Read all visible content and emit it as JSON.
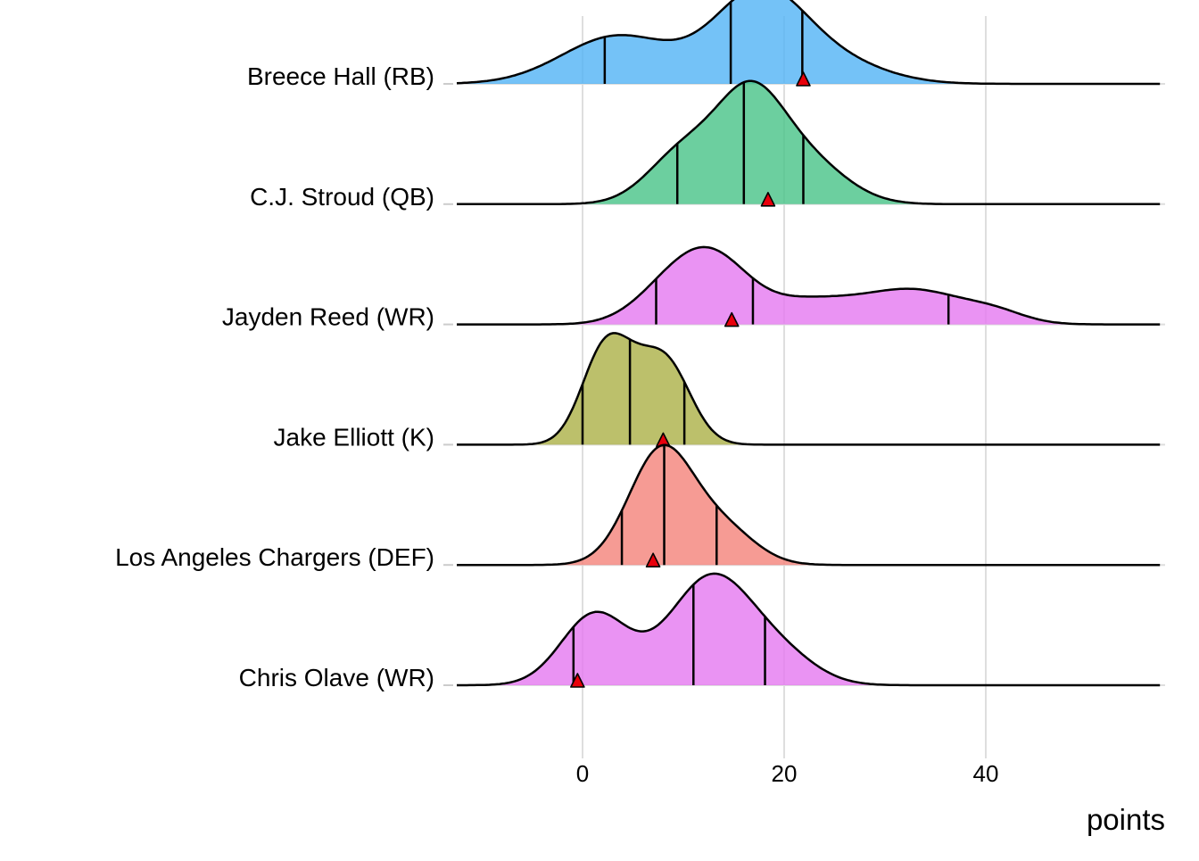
{
  "chart_data": {
    "type": "ridgeline",
    "title": "",
    "xlabel": "points",
    "ylabel": "",
    "xlim": [
      -12.5,
      57.5
    ],
    "x_ticks": [
      0,
      20,
      40
    ],
    "x_tick_labels": [
      "0",
      "20",
      "40"
    ],
    "grid": true,
    "legend": "none",
    "series": [
      {
        "name": "Breece Hall (RB)",
        "color": "#56B4F5",
        "quantiles": [
          2.2,
          14.7,
          21.8
        ],
        "actual": 21.9,
        "density_components": [
          [
            3.5,
            5.5,
            0.42
          ],
          [
            17.5,
            4.5,
            0.78
          ],
          [
            25,
            5,
            0.18
          ]
        ]
      },
      {
        "name": "C.J. Stroud (QB)",
        "color": "#4CC58A",
        "quantiles": [
          9.4,
          16.0,
          21.9
        ],
        "actual": 18.4,
        "density_components": [
          [
            10,
            3.5,
            0.45
          ],
          [
            16.5,
            3.3,
            0.85
          ],
          [
            22,
            4,
            0.38
          ]
        ]
      },
      {
        "name": "Jayden Reed (WR)",
        "color": "#E57BF0",
        "quantiles": [
          7.3,
          16.9,
          36.3
        ],
        "actual": 14.8,
        "density_components": [
          [
            8.5,
            3.5,
            0.28
          ],
          [
            13,
            3.5,
            0.5
          ],
          [
            22,
            5,
            0.2
          ],
          [
            33,
            5,
            0.29
          ],
          [
            41,
            3,
            0.08
          ]
        ]
      },
      {
        "name": "Jake Elliott (K)",
        "color": "#ADB24A",
        "quantiles": [
          0.0,
          4.7,
          10.1
        ],
        "actual": 8.0,
        "density_components": [
          [
            2.2,
            2.3,
            0.82
          ],
          [
            8.2,
            2.5,
            0.72
          ],
          [
            5,
            2,
            0.2
          ]
        ]
      },
      {
        "name": "Los Angeles Chargers (DEF)",
        "color": "#F4857D",
        "quantiles": [
          3.9,
          8.1,
          13.3
        ],
        "actual": 7.0,
        "density_components": [
          [
            7.8,
            3.2,
            1.0
          ],
          [
            14,
            3.2,
            0.3
          ]
        ]
      },
      {
        "name": "Chris Olave (WR)",
        "color": "#E57BF0",
        "quantiles": [
          -0.9,
          11.0,
          18.1
        ],
        "actual": -0.5,
        "density_components": [
          [
            1.2,
            3.3,
            0.62
          ],
          [
            12.8,
            4.2,
            0.95
          ],
          [
            20,
            3.5,
            0.2
          ]
        ]
      }
    ]
  }
}
